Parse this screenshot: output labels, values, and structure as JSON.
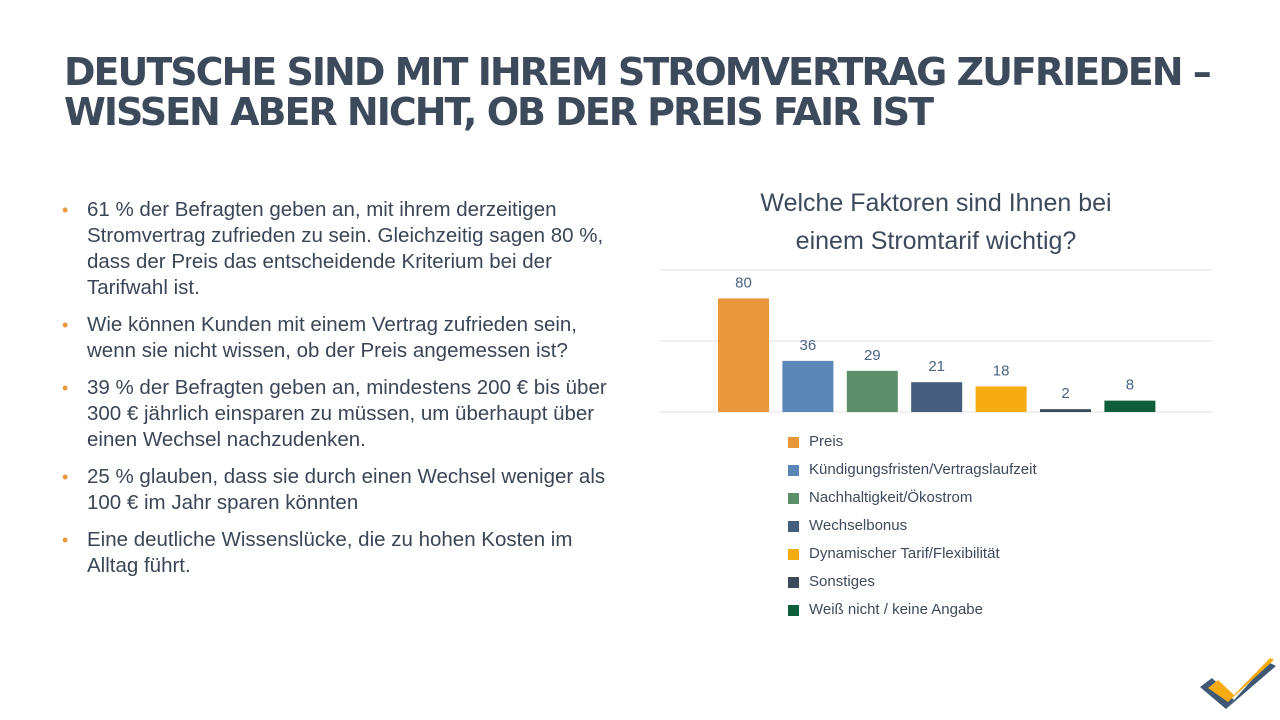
{
  "slide": {
    "title_line1": "DEUTSCHE SIND MIT IHREM STROMVERTRAG ZUFRIEDEN –",
    "title_line2": "WISSEN ABER NICHT, OB DER PREIS FAIR IST",
    "bullet_glyph": "•",
    "bullets": [
      "61 % der Befragten geben an, mit ihrem derzeitigen Stromvertrag zufrieden zu sein. Gleichzeitig sagen 80 %, dass der Preis das entscheidende Kriterium bei der Tarifwahl ist.",
      "Wie können Kunden mit einem Vertrag zufrieden sein, wenn sie nicht wissen, ob der Preis angemessen ist?",
      "39 % der Befragten geben an, mindestens 200 € bis über 300 € jährlich einsparen zu müssen, um überhaupt über einen Wechsel nachzudenken.",
      "25 % glauben, dass sie durch einen Wechsel weniger als 100 € im Jahr sparen könnten",
      "Eine deutliche Wissenslücke, die zu hohen Kosten im Alltag führt."
    ]
  },
  "chart_data": {
    "type": "bar",
    "title_line1": "Welche Faktoren sind Ihnen bei",
    "title_line2": "einem Stromtarif wichtig?",
    "categories": [
      "Preis",
      "Kündigungsfristen/Vertragslaufzeit",
      "Nachhaltigkeit/Ökostrom",
      "Wechselbonus",
      "Dynamischer Tarif/Flexibilität",
      "Sonstiges",
      "Weiß nicht / keine Angabe"
    ],
    "values": [
      80,
      36,
      29,
      21,
      18,
      2,
      8
    ],
    "colors": [
      "#e8983a",
      "#5b87b8",
      "#5a8f6a",
      "#455d7e",
      "#f6ab11",
      "#3c4a5c",
      "#0f5e3b"
    ],
    "ylim": [
      0,
      100
    ],
    "gridlines": [
      0,
      50,
      100
    ],
    "grid": true,
    "legend_position": "bottom"
  }
}
